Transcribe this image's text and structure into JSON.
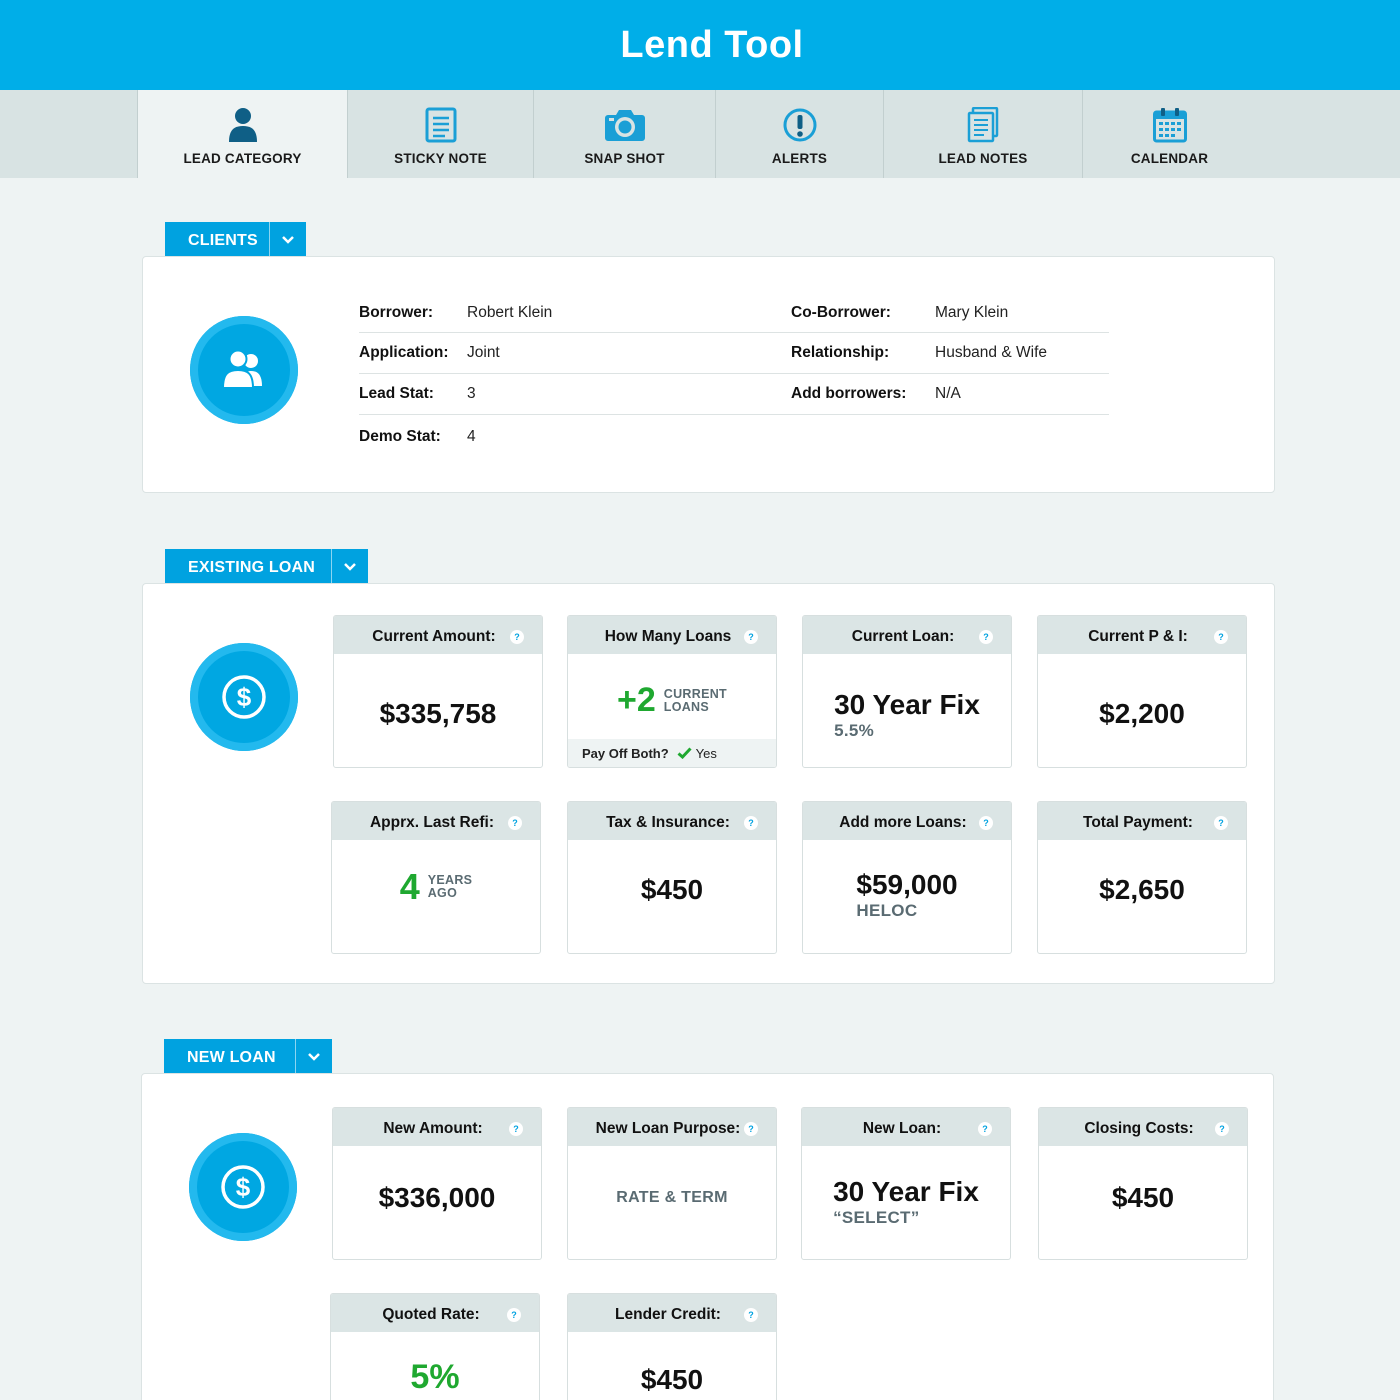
{
  "app": {
    "title": "Lend Tool"
  },
  "nav": [
    {
      "label": "LEAD CATEGORY",
      "icon": "user-icon"
    },
    {
      "label": "STICKY NOTE",
      "icon": "note-icon"
    },
    {
      "label": "SNAP SHOT",
      "icon": "camera-icon"
    },
    {
      "label": "ALERTS",
      "icon": "alert-icon"
    },
    {
      "label": "LEAD NOTES",
      "icon": "notes-icon"
    },
    {
      "label": "CALENDAR",
      "icon": "calendar-icon"
    }
  ],
  "clients": {
    "tab_label": "CLIENTS",
    "rows": [
      {
        "k1": "Borrower:",
        "v1": "Robert Klein",
        "k2": "Co-Borrower:",
        "v2": "Mary Klein"
      },
      {
        "k1": "Application:",
        "v1": "Joint",
        "k2": "Relationship:",
        "v2": "Husband & Wife"
      },
      {
        "k1": "Lead Stat:",
        "v1": "3",
        "k2": "Add borrowers:",
        "v2": "N/A"
      },
      {
        "k1": "Demo Stat:",
        "v1": "4",
        "k2": "",
        "v2": ""
      }
    ]
  },
  "existing": {
    "tab_label": "EXISTING LOAN",
    "current_amount": {
      "label": "Current Amount:",
      "value": "$335,758"
    },
    "how_many": {
      "label": "How Many Loans",
      "value": "+2",
      "unit_line1": "CURRENT",
      "unit_line2": "LOANS",
      "foot_label": "Pay Off Both?",
      "foot_value": "Yes"
    },
    "current_loan": {
      "label": "Current Loan:",
      "value": "30 Year Fix",
      "sub": "5.5%"
    },
    "current_pi": {
      "label": "Current P & I:",
      "value": "$2,200"
    },
    "last_refi": {
      "label": "Apprx. Last Refi:",
      "value": "4",
      "unit_line1": "YEARS",
      "unit_line2": "AGO"
    },
    "tax_ins": {
      "label": "Tax & Insurance:",
      "value": "$450"
    },
    "add_loans": {
      "label": "Add more Loans:",
      "value": "$59,000",
      "sub": "HELOC"
    },
    "total_payment": {
      "label": "Total Payment:",
      "value": "$2,650"
    }
  },
  "new_loan": {
    "tab_label": "NEW LOAN",
    "new_amount": {
      "label": "New Amount:",
      "value": "$336,000"
    },
    "purpose": {
      "label": "New Loan Purpose:",
      "value": "RATE & TERM"
    },
    "new_loan": {
      "label": "New Loan:",
      "value": "30 Year Fix",
      "sub": "“SELECT”"
    },
    "closing_costs": {
      "label": "Closing Costs:",
      "value": "$450"
    },
    "quoted_rate": {
      "label": "Quoted Rate:",
      "value": "5%"
    },
    "lender_credit": {
      "label": "Lender Credit:",
      "value": "$450"
    }
  },
  "help_glyph": "?",
  "colors": {
    "brand": "#00aee8",
    "tab": "#00a2e0",
    "positive": "#1fa830"
  }
}
